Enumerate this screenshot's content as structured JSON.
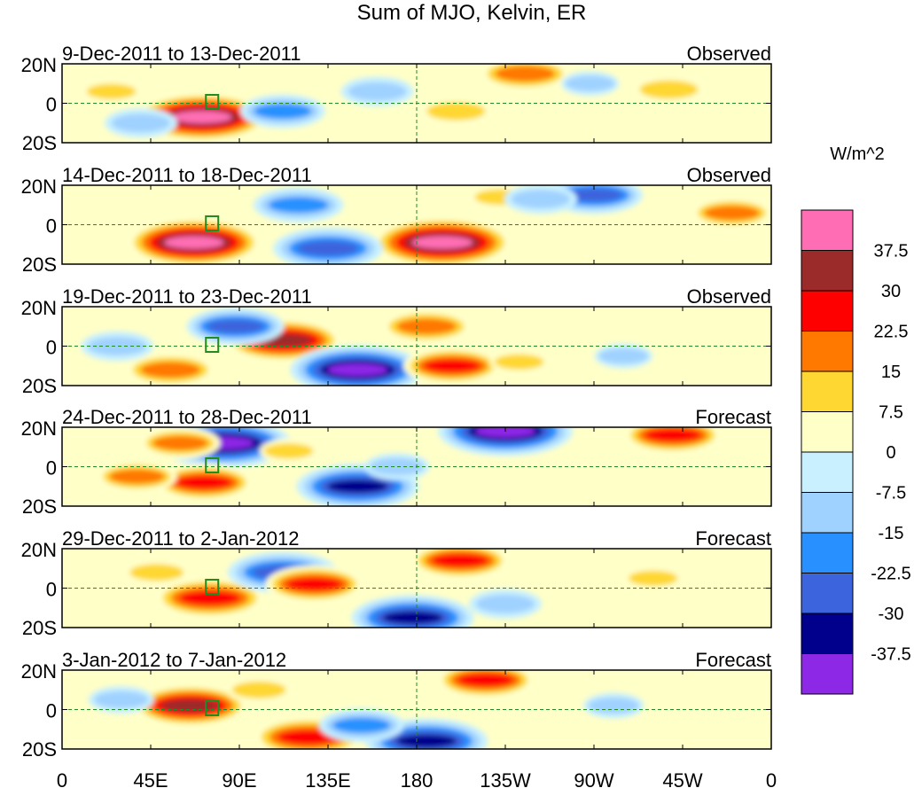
{
  "chart_data": {
    "type": "heatmap",
    "title": "Sum of MJO, Kelvin, ER",
    "units": "W/m^2",
    "x_tick_labels": [
      "0",
      "45E",
      "90E",
      "135E",
      "180",
      "135W",
      "90W",
      "45W",
      "0"
    ],
    "y_tick_labels": [
      "20N",
      "0",
      "20S"
    ],
    "xlim": [
      0,
      360
    ],
    "ylim": [
      -20,
      20
    ],
    "colorbar_levels": [
      "37.5",
      "30",
      "22.5",
      "15",
      "7.5",
      "0",
      "-7.5",
      "-15",
      "-22.5",
      "-30",
      "-37.5"
    ],
    "colorbar_colors": [
      "#ff6eb4",
      "#9b2a2a",
      "#ff0000",
      "#ff7800",
      "#ffd732",
      "#ffffc8",
      "#c8f0ff",
      "#a0d2ff",
      "#2891ff",
      "#3c64dc",
      "#00008c",
      "#8c28e6"
    ],
    "panels": [
      {
        "period": "9-Dec-2011 to 13-Dec-2011",
        "status": "Observed",
        "anomalies": [
          {
            "lon": 71,
            "lat": -7,
            "value": 40
          },
          {
            "lon": 112,
            "lat": -4,
            "value": -20
          },
          {
            "lon": 200,
            "lat": -4,
            "value": 15
          },
          {
            "lon": 235,
            "lat": 15,
            "value": 22
          },
          {
            "lon": 308,
            "lat": 7,
            "value": 15
          },
          {
            "lon": 160,
            "lat": 6,
            "value": -15
          },
          {
            "lon": 40,
            "lat": -10,
            "value": -15
          },
          {
            "lon": 25,
            "lat": 6,
            "value": 9
          },
          {
            "lon": 268,
            "lat": 10,
            "value": -9
          }
        ]
      },
      {
        "period": "14-Dec-2011 to 18-Dec-2011",
        "status": "Observed",
        "anomalies": [
          {
            "lon": 67,
            "lat": -9,
            "value": 40
          },
          {
            "lon": 193,
            "lat": -9,
            "value": 42
          },
          {
            "lon": 135,
            "lat": -12,
            "value": -30
          },
          {
            "lon": 120,
            "lat": 10,
            "value": -22
          },
          {
            "lon": 270,
            "lat": 15,
            "value": -25
          },
          {
            "lon": 340,
            "lat": 6,
            "value": 18
          },
          {
            "lon": 222,
            "lat": 14,
            "value": 9
          },
          {
            "lon": 243,
            "lat": 13,
            "value": -15
          }
        ]
      },
      {
        "period": "19-Dec-2011 to 23-Dec-2011",
        "status": "Observed",
        "anomalies": [
          {
            "lon": 55,
            "lat": -12,
            "value": 22
          },
          {
            "lon": 112,
            "lat": 3,
            "value": 33
          },
          {
            "lon": 150,
            "lat": -12,
            "value": -40
          },
          {
            "lon": 198,
            "lat": -10,
            "value": 25
          },
          {
            "lon": 185,
            "lat": 10,
            "value": 22
          },
          {
            "lon": 88,
            "lat": 10,
            "value": -25
          },
          {
            "lon": 28,
            "lat": 0,
            "value": -15
          },
          {
            "lon": 232,
            "lat": -8,
            "value": 9
          },
          {
            "lon": 285,
            "lat": -5,
            "value": -9
          }
        ]
      },
      {
        "period": "24-Dec-2011 to 28-Dec-2011",
        "status": "Forecast",
        "anomalies": [
          {
            "lon": 82,
            "lat": 12,
            "value": -40
          },
          {
            "lon": 60,
            "lat": 12,
            "value": 18
          },
          {
            "lon": 72,
            "lat": -8,
            "value": 25
          },
          {
            "lon": 150,
            "lat": -10,
            "value": -35
          },
          {
            "lon": 225,
            "lat": 18,
            "value": -40
          },
          {
            "lon": 310,
            "lat": 16,
            "value": 25
          },
          {
            "lon": 38,
            "lat": -5,
            "value": 18
          },
          {
            "lon": 115,
            "lat": 8,
            "value": 9
          },
          {
            "lon": 170,
            "lat": 0,
            "value": -12
          }
        ]
      },
      {
        "period": "29-Dec-2011 to 2-Jan-2012",
        "status": "Forecast",
        "anomalies": [
          {
            "lon": 75,
            "lat": -5,
            "value": 30
          },
          {
            "lon": 112,
            "lat": 8,
            "value": -30
          },
          {
            "lon": 128,
            "lat": 2,
            "value": 25
          },
          {
            "lon": 202,
            "lat": 14,
            "value": 25
          },
          {
            "lon": 178,
            "lat": -15,
            "value": -35
          },
          {
            "lon": 48,
            "lat": 8,
            "value": 12
          },
          {
            "lon": 225,
            "lat": -8,
            "value": -15
          },
          {
            "lon": 300,
            "lat": 5,
            "value": 9
          }
        ]
      },
      {
        "period": "3-Jan-2012 to 7-Jan-2012",
        "status": "Forecast",
        "anomalies": [
          {
            "lon": 65,
            "lat": 2,
            "value": 32
          },
          {
            "lon": 125,
            "lat": -14,
            "value": 30
          },
          {
            "lon": 185,
            "lat": -16,
            "value": -35
          },
          {
            "lon": 215,
            "lat": 15,
            "value": 25
          },
          {
            "lon": 152,
            "lat": -8,
            "value": -20
          },
          {
            "lon": 100,
            "lat": 10,
            "value": 12
          },
          {
            "lon": 30,
            "lat": 5,
            "value": -12
          },
          {
            "lon": 280,
            "lat": 2,
            "value": -10
          }
        ]
      }
    ]
  }
}
